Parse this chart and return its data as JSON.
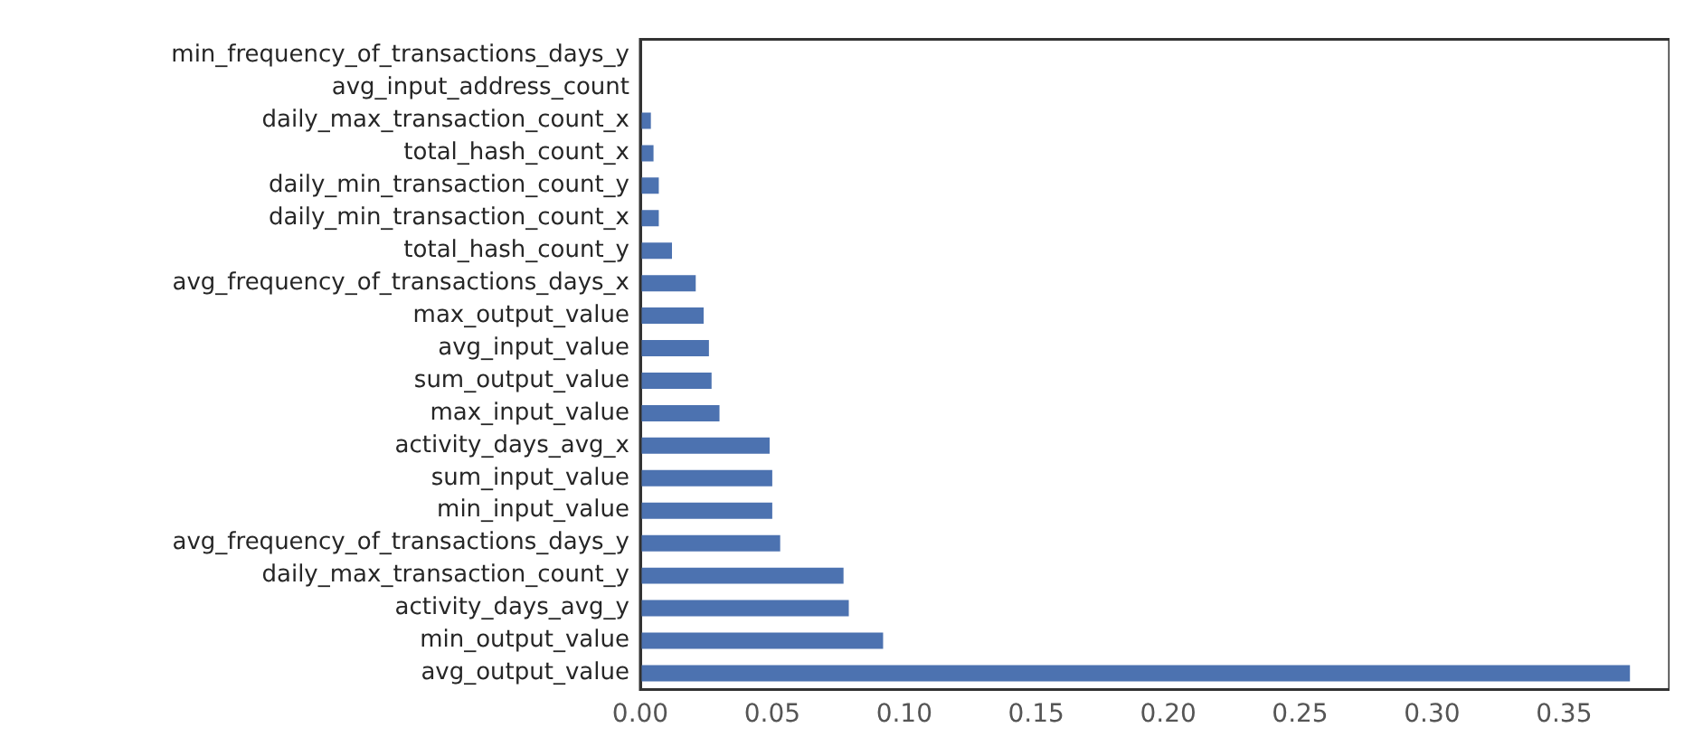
{
  "chart_data": {
    "type": "bar",
    "orientation": "horizontal",
    "categories": [
      "min_frequency_of_transactions_days_y",
      "avg_input_address_count",
      "daily_max_transaction_count_x",
      "total_hash_count_x",
      "daily_min_transaction_count_y",
      "daily_min_transaction_count_x",
      "total_hash_count_y",
      "avg_frequency_of_transactions_days_x",
      "max_output_value",
      "avg_input_value",
      "sum_output_value",
      "max_input_value",
      "activity_days_avg_x",
      "sum_input_value",
      "min_input_value",
      "avg_frequency_of_transactions_days_y",
      "daily_max_transaction_count_y",
      "activity_days_avg_y",
      "min_output_value",
      "avg_output_value"
    ],
    "values": [
      0,
      0,
      0.004,
      0.005,
      0.007,
      0.007,
      0.012,
      0.021,
      0.024,
      0.026,
      0.027,
      0.03,
      0.049,
      0.05,
      0.05,
      0.053,
      0.077,
      0.079,
      0.092,
      0.375
    ],
    "color": "#4c72b0",
    "xlim": [
      0,
      0.39
    ],
    "xticks": [
      {
        "value": 0,
        "label": "0.00"
      },
      {
        "value": 0.05,
        "label": "0.05"
      },
      {
        "value": 0.1,
        "label": "0.10"
      },
      {
        "value": 0.15,
        "label": "0.15"
      },
      {
        "value": 0.2,
        "label": "0.20"
      },
      {
        "value": 0.25,
        "label": "0.25"
      },
      {
        "value": 0.3,
        "label": "0.30"
      },
      {
        "value": 0.35,
        "label": "0.35"
      }
    ],
    "grid": false,
    "legend": false
  }
}
